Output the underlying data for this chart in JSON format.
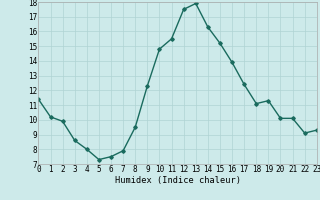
{
  "x": [
    0,
    1,
    2,
    3,
    4,
    5,
    6,
    7,
    8,
    9,
    10,
    11,
    12,
    13,
    14,
    15,
    16,
    17,
    18,
    19,
    20,
    21,
    22,
    23
  ],
  "y": [
    11.4,
    10.2,
    9.9,
    8.6,
    8.0,
    7.3,
    7.5,
    7.9,
    9.5,
    12.3,
    14.8,
    15.5,
    17.5,
    17.9,
    16.3,
    15.2,
    13.9,
    12.4,
    11.1,
    11.3,
    10.1,
    10.1,
    9.1,
    9.3
  ],
  "xlabel": "Humidex (Indice chaleur)",
  "ylim": [
    7,
    18
  ],
  "xlim": [
    0,
    23
  ],
  "yticks": [
    7,
    8,
    9,
    10,
    11,
    12,
    13,
    14,
    15,
    16,
    17,
    18
  ],
  "xticks": [
    0,
    1,
    2,
    3,
    4,
    5,
    6,
    7,
    8,
    9,
    10,
    11,
    12,
    13,
    14,
    15,
    16,
    17,
    18,
    19,
    20,
    21,
    22,
    23
  ],
  "line_color": "#1a6b5e",
  "marker": "D",
  "marker_size": 1.8,
  "background_color": "#cdeaea",
  "grid_color": "#b0d4d4",
  "line_width": 1.0,
  "tick_fontsize": 5.5,
  "xlabel_fontsize": 6.2
}
